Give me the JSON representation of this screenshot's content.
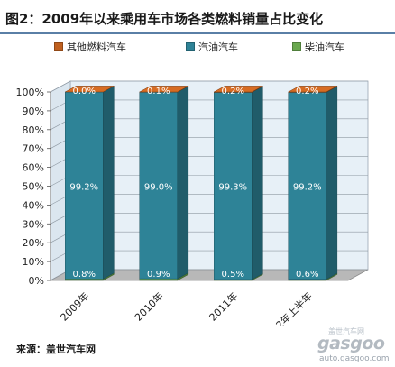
{
  "title": "图2：2009年以来乘用车市场各类燃料销量占比变化",
  "source": "来源：盖世汽车网",
  "watermark": {
    "logo_text": "gasgoo",
    "chinese_text": "盖世汽车网",
    "url": "auto.gasgoo.com"
  },
  "colors": {
    "other_fuel": "#c0601f",
    "gasoline": "#2e8397",
    "diesel": "#6aa84f",
    "wall": "#e7f0f7",
    "floor": "#b8b8b8",
    "title_rule": "#5a7fa6"
  },
  "chart_data": {
    "type": "bar",
    "stacked": true,
    "percent_stacked": true,
    "three_d": true,
    "categories": [
      "2009年",
      "2010年",
      "2011年",
      "2012年上半年"
    ],
    "series": [
      {
        "name": "柴油汽车",
        "values": [
          0.8,
          0.9,
          0.5,
          0.6
        ],
        "labels": [
          "0.8%",
          "0.9%",
          "0.5%",
          "0.6%"
        ],
        "color": "#6aa84f"
      },
      {
        "name": "汽油汽车",
        "values": [
          99.2,
          99.0,
          99.3,
          99.2
        ],
        "labels": [
          "99.2%",
          "99.0%",
          "99.3%",
          "99.2%"
        ],
        "color": "#2e8397"
      },
      {
        "name": "其他燃料汽车",
        "values": [
          0.0,
          0.1,
          0.2,
          0.2
        ],
        "labels": [
          "0.0%",
          "0.1%",
          "0.2%",
          "0.2%"
        ],
        "color": "#c0601f"
      }
    ],
    "legend_order": [
      "其他燃料汽车",
      "汽油汽车",
      "柴油汽车"
    ],
    "legend_position": "top",
    "y_ticks": [
      "0%",
      "10%",
      "20%",
      "30%",
      "40%",
      "50%",
      "60%",
      "70%",
      "80%",
      "90%",
      "100%"
    ],
    "ylim": [
      0,
      100
    ],
    "grid": true,
    "xlabel": "",
    "ylabel": ""
  }
}
